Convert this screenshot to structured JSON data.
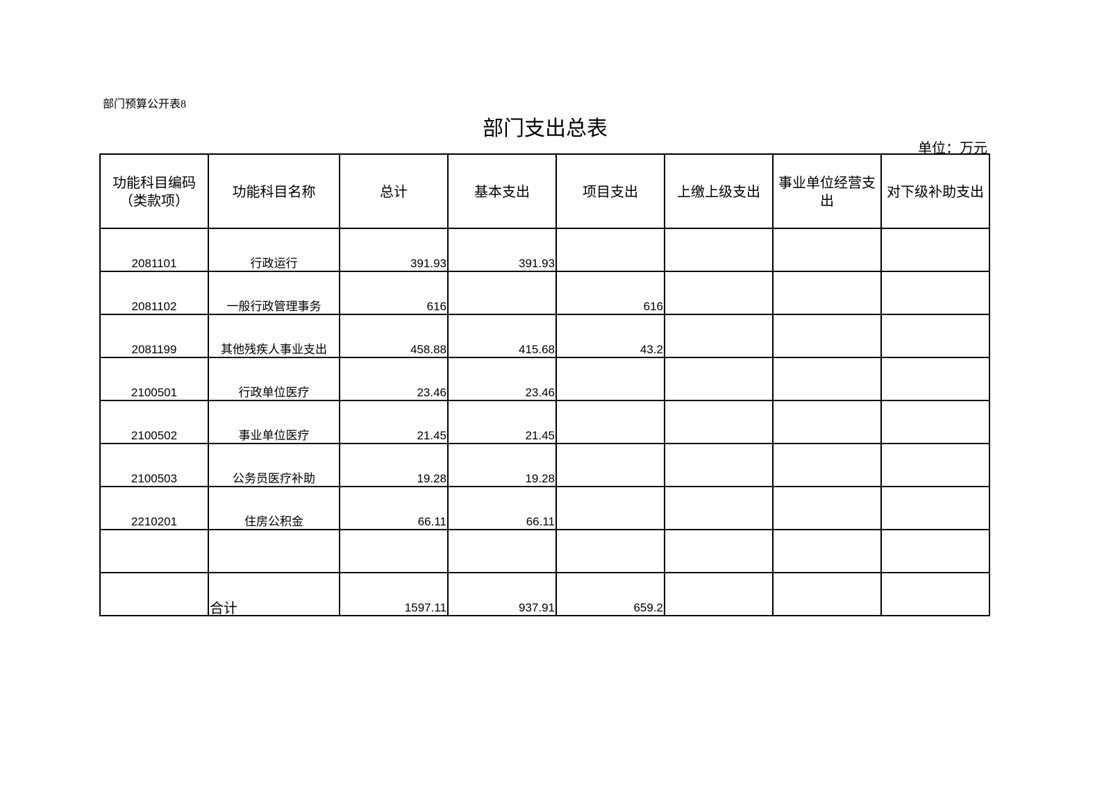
{
  "caption": "部门预算公开表8",
  "title": "部门支出总表",
  "unit": "单位：万元",
  "columns": [
    "功能科目编码（类款项）",
    "功能科目名称",
    "总计",
    "基本支出",
    "项目支出",
    "上缴上级支出",
    "事业单位经营支出",
    "对下级补助支出"
  ],
  "rows": [
    [
      "2081101",
      "行政运行",
      "391.93",
      "391.93",
      "",
      "",
      "",
      ""
    ],
    [
      "2081102",
      "一般行政管理事务",
      "616",
      "",
      "616",
      "",
      "",
      ""
    ],
    [
      "2081199",
      "其他残疾人事业支出",
      "458.88",
      "415.68",
      "43.2",
      "",
      "",
      ""
    ],
    [
      "2100501",
      "行政单位医疗",
      "23.46",
      "23.46",
      "",
      "",
      "",
      ""
    ],
    [
      "2100502",
      "事业单位医疗",
      "21.45",
      "21.45",
      "",
      "",
      "",
      ""
    ],
    [
      "2100503",
      "公务员医疗补助",
      "19.28",
      "19.28",
      "",
      "",
      "",
      ""
    ],
    [
      "2210201",
      "住房公积金",
      "66.11",
      "66.11",
      "",
      "",
      "",
      ""
    ],
    [
      "",
      "",
      "",
      "",
      "",
      "",
      "",
      ""
    ],
    [
      "",
      "合计",
      "1597.11",
      "937.91",
      "659.2",
      "",
      "",
      ""
    ]
  ]
}
